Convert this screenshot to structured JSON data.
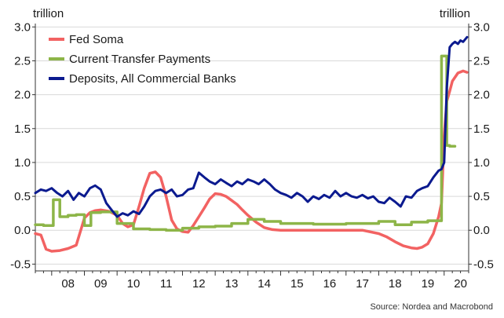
{
  "chart_data": {
    "type": "line",
    "left_unit": "trillion",
    "right_unit": "trillion",
    "source": "Source: Nordea and Macrobond",
    "ylim": [
      -0.6,
      3.05
    ],
    "yticks": [
      -0.5,
      0.0,
      0.5,
      1.0,
      1.5,
      2.0,
      2.5,
      3.0
    ],
    "ytick_labels": [
      "-0.5",
      "0.0",
      "0.5",
      "1.0",
      "1.5",
      "2.0",
      "2.5",
      "3.0"
    ],
    "xlim": [
      2007.5,
      2020.75
    ],
    "xticks": [
      2008.5,
      2009.5,
      2010.5,
      2011.5,
      2012.5,
      2013.5,
      2014.5,
      2015.5,
      2016.5,
      2017.5,
      2018.5,
      2019.5,
      2020.5
    ],
    "xtick_labels": [
      "08",
      "09",
      "10",
      "11",
      "12",
      "13",
      "14",
      "15",
      "16",
      "17",
      "18",
      "19",
      "20"
    ],
    "grid": true,
    "legend_position": "top-left",
    "series": [
      {
        "name": "Fed Soma",
        "color": "#f26262",
        "x": [
          2007.5,
          2007.67,
          2007.83,
          2008.0,
          2008.25,
          2008.5,
          2008.75,
          2008.92,
          2009.0,
          2009.17,
          2009.33,
          2009.5,
          2009.75,
          2010.0,
          2010.17,
          2010.33,
          2010.5,
          2010.67,
          2010.83,
          2011.0,
          2011.17,
          2011.33,
          2011.5,
          2011.67,
          2011.83,
          2012.0,
          2012.17,
          2012.33,
          2012.5,
          2012.67,
          2012.83,
          2013.0,
          2013.17,
          2013.33,
          2013.5,
          2013.67,
          2013.83,
          2014.0,
          2014.25,
          2014.5,
          2014.75,
          2015.0,
          2015.25,
          2015.5,
          2016.0,
          2016.5,
          2017.0,
          2017.5,
          2018.0,
          2018.25,
          2018.5,
          2018.75,
          2019.0,
          2019.17,
          2019.33,
          2019.5,
          2019.67,
          2019.83,
          2019.92,
          2020.0,
          2020.08,
          2020.17,
          2020.25,
          2020.42,
          2020.58,
          2020.7
        ],
        "y": [
          -0.05,
          -0.07,
          -0.28,
          -0.31,
          -0.3,
          -0.27,
          -0.22,
          0.05,
          0.18,
          0.26,
          0.29,
          0.3,
          0.28,
          0.22,
          0.1,
          0.05,
          0.08,
          0.35,
          0.62,
          0.84,
          0.86,
          0.78,
          0.5,
          0.15,
          0.02,
          -0.02,
          -0.03,
          0.07,
          0.2,
          0.33,
          0.46,
          0.54,
          0.53,
          0.5,
          0.44,
          0.38,
          0.3,
          0.22,
          0.12,
          0.04,
          0.01,
          0.0,
          0.0,
          0.0,
          0.0,
          0.0,
          0.0,
          0.0,
          -0.05,
          -0.1,
          -0.17,
          -0.23,
          -0.26,
          -0.27,
          -0.25,
          -0.2,
          -0.05,
          0.2,
          0.4,
          1.4,
          1.9,
          2.05,
          2.2,
          2.32,
          2.35,
          2.33
        ]
      },
      {
        "name": "Current Transfer Payments",
        "color": "#8db548",
        "x": [
          2007.5,
          2007.75,
          2007.75,
          2008.05,
          2008.05,
          2008.25,
          2008.25,
          2008.5,
          2008.5,
          2008.75,
          2008.75,
          2009.0,
          2009.0,
          2009.2,
          2009.2,
          2009.5,
          2009.5,
          2010.0,
          2010.0,
          2010.17,
          2010.17,
          2010.5,
          2010.5,
          2011.0,
          2011.0,
          2011.5,
          2011.5,
          2012.0,
          2012.0,
          2012.5,
          2012.5,
          2013.0,
          2013.0,
          2013.5,
          2013.5,
          2014.0,
          2014.0,
          2014.5,
          2014.5,
          2015.0,
          2015.0,
          2016.0,
          2016.0,
          2017.0,
          2017.0,
          2018.0,
          2018.0,
          2018.5,
          2018.5,
          2019.0,
          2019.0,
          2019.5,
          2019.5,
          2019.92,
          2019.92,
          2020.08,
          2020.08,
          2020.17,
          2020.17,
          2020.33
        ],
        "y": [
          0.08,
          0.08,
          0.07,
          0.07,
          0.45,
          0.45,
          0.2,
          0.2,
          0.22,
          0.22,
          0.23,
          0.23,
          0.07,
          0.07,
          0.26,
          0.26,
          0.27,
          0.27,
          0.1,
          0.1,
          0.1,
          0.1,
          0.02,
          0.02,
          0.01,
          0.01,
          0.0,
          0.0,
          0.03,
          0.03,
          0.05,
          0.05,
          0.06,
          0.06,
          0.1,
          0.1,
          0.16,
          0.16,
          0.13,
          0.13,
          0.1,
          0.1,
          0.09,
          0.09,
          0.1,
          0.1,
          0.13,
          0.13,
          0.08,
          0.08,
          0.12,
          0.12,
          0.14,
          0.14,
          2.57,
          2.57,
          1.25,
          1.25,
          1.24,
          1.24
        ]
      },
      {
        "name": "Deposits, All Commercial Banks",
        "color": "#0b1a8f",
        "x": [
          2007.5,
          2007.67,
          2007.83,
          2008.0,
          2008.17,
          2008.33,
          2008.5,
          2008.67,
          2008.83,
          2009.0,
          2009.17,
          2009.33,
          2009.5,
          2009.67,
          2009.83,
          2010.0,
          2010.17,
          2010.33,
          2010.5,
          2010.67,
          2010.83,
          2011.0,
          2011.17,
          2011.33,
          2011.5,
          2011.67,
          2011.83,
          2012.0,
          2012.17,
          2012.33,
          2012.5,
          2012.67,
          2012.83,
          2013.0,
          2013.17,
          2013.33,
          2013.5,
          2013.67,
          2013.83,
          2014.0,
          2014.17,
          2014.33,
          2014.5,
          2014.67,
          2014.83,
          2015.0,
          2015.17,
          2015.33,
          2015.5,
          2015.67,
          2015.83,
          2016.0,
          2016.17,
          2016.33,
          2016.5,
          2016.67,
          2016.83,
          2017.0,
          2017.17,
          2017.33,
          2017.5,
          2017.67,
          2017.83,
          2018.0,
          2018.17,
          2018.33,
          2018.5,
          2018.67,
          2018.83,
          2019.0,
          2019.17,
          2019.33,
          2019.5,
          2019.67,
          2019.83,
          2019.92,
          2020.0,
          2020.08,
          2020.17,
          2020.25,
          2020.33,
          2020.42,
          2020.5,
          2020.58,
          2020.7
        ],
        "y": [
          0.55,
          0.6,
          0.58,
          0.62,
          0.55,
          0.5,
          0.58,
          0.45,
          0.55,
          0.5,
          0.62,
          0.66,
          0.6,
          0.4,
          0.3,
          0.2,
          0.25,
          0.22,
          0.28,
          0.24,
          0.35,
          0.5,
          0.58,
          0.6,
          0.55,
          0.6,
          0.5,
          0.52,
          0.6,
          0.62,
          0.85,
          0.78,
          0.72,
          0.68,
          0.75,
          0.7,
          0.65,
          0.72,
          0.68,
          0.75,
          0.72,
          0.68,
          0.75,
          0.68,
          0.6,
          0.55,
          0.52,
          0.48,
          0.55,
          0.5,
          0.42,
          0.5,
          0.46,
          0.52,
          0.48,
          0.58,
          0.5,
          0.55,
          0.5,
          0.48,
          0.52,
          0.47,
          0.5,
          0.42,
          0.4,
          0.48,
          0.42,
          0.35,
          0.5,
          0.48,
          0.58,
          0.62,
          0.65,
          0.78,
          0.88,
          0.9,
          1.0,
          2.1,
          2.7,
          2.75,
          2.78,
          2.75,
          2.8,
          2.78,
          2.85
        ]
      }
    ]
  }
}
